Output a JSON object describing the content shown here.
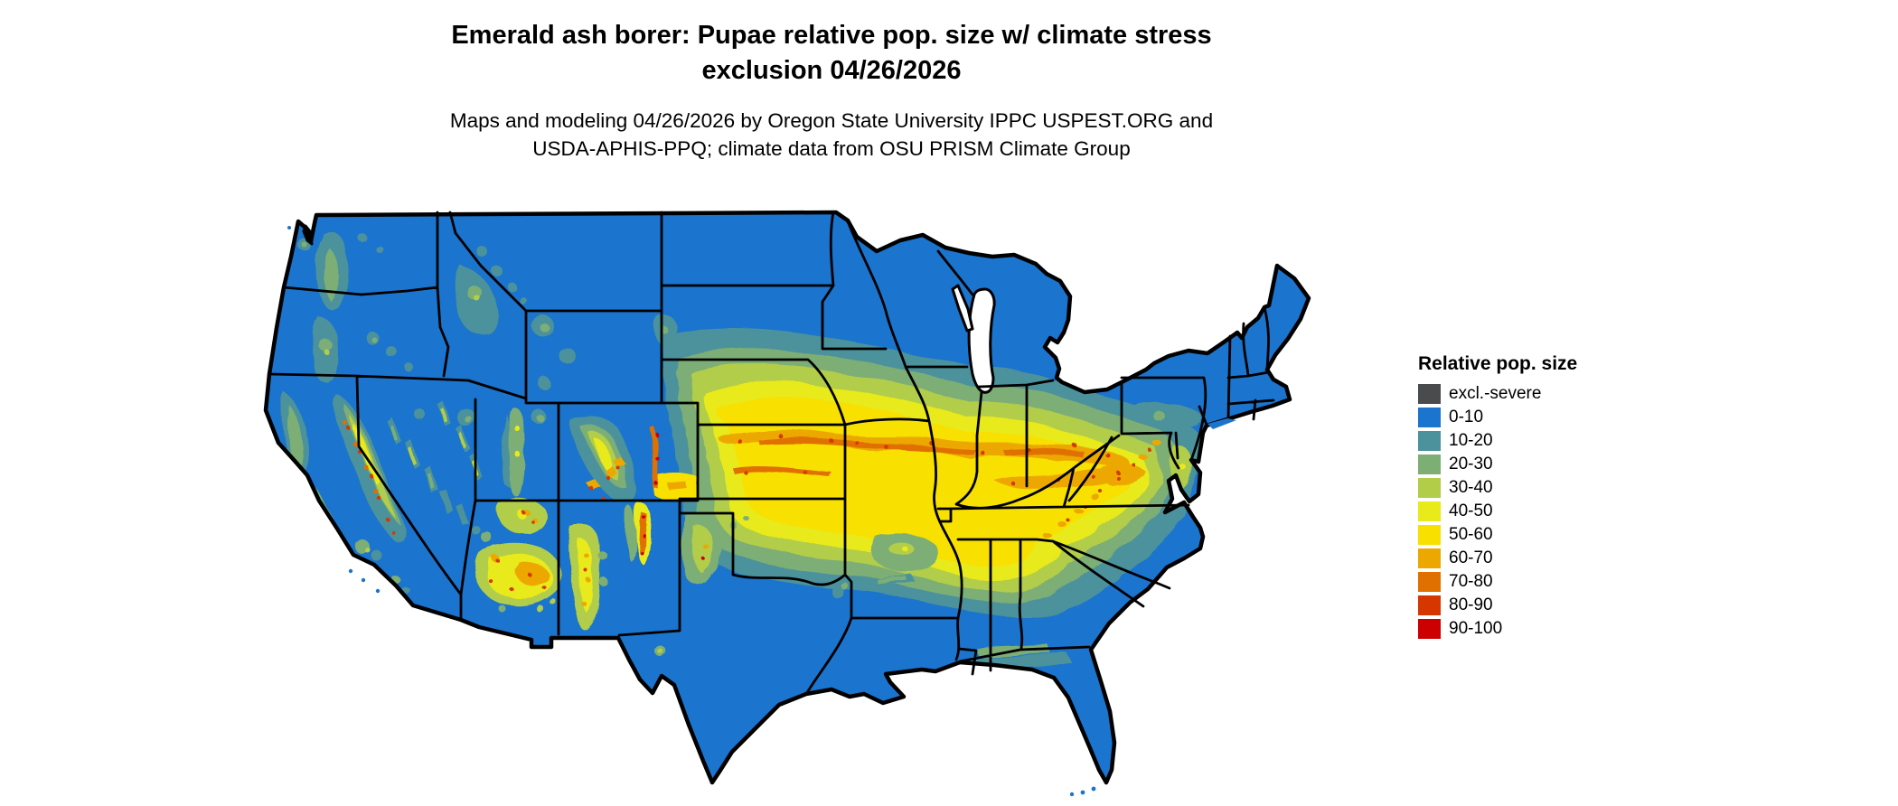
{
  "title": {
    "line1": "Emerald ash borer: Pupae relative pop. size w/ climate stress",
    "line2": "exclusion 04/26/2026"
  },
  "subtitle": {
    "line1": "Maps and modeling 04/26/2026 by Oregon State University IPPC USPEST.ORG and",
    "line2": "USDA-APHIS-PPQ; climate data from OSU PRISM Climate Group"
  },
  "legend": {
    "title": "Relative pop. size",
    "items": [
      {
        "label": "excl.-severe",
        "color": "#4a4b4c"
      },
      {
        "label": "0-10",
        "color": "#1b74cd"
      },
      {
        "label": "10-20",
        "color": "#4b929c"
      },
      {
        "label": "20-30",
        "color": "#7dae74"
      },
      {
        "label": "30-40",
        "color": "#b2cd48"
      },
      {
        "label": "40-50",
        "color": "#e8ea1a"
      },
      {
        "label": "50-60",
        "color": "#f8e000"
      },
      {
        "label": "60-70",
        "color": "#eda800"
      },
      {
        "label": "70-80",
        "color": "#e07000"
      },
      {
        "label": "80-90",
        "color": "#d63700"
      },
      {
        "label": "90-100",
        "color": "#cc0000"
      }
    ]
  },
  "map": {
    "region": "Contiguous United States",
    "type": "raster choropleth of relative population size",
    "base_color": "#1b74cd",
    "border_color": "#000000",
    "water_color": "#ffffff"
  }
}
